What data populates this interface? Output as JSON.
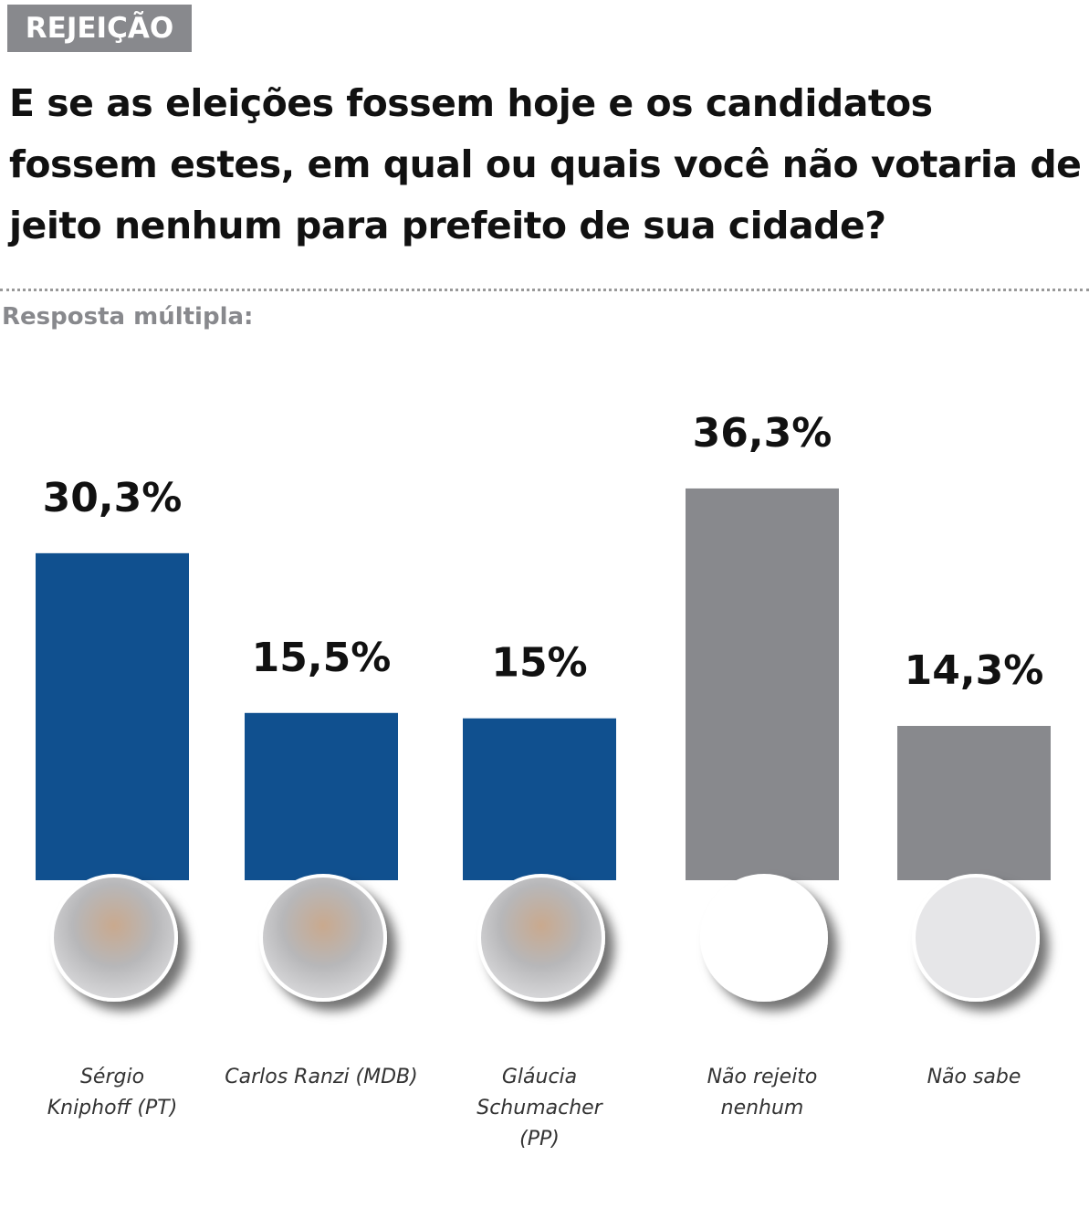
{
  "tag": "REJEIÇÃO",
  "chart_data": {
    "type": "bar",
    "title": "E se as eleições fossem hoje e os candidatos fossem estes, em qual ou quais você não votaria de jeito nenhum para prefeito de sua cidade?",
    "subtitle": "Resposta múltipla:",
    "categories": [
      "Sérgio Kniphoff (PT)",
      "Carlos Ranzi (MDB)",
      "Gláucia Schumacher (PP)",
      "Não rejeito nenhum",
      "Não sabe"
    ],
    "values": [
      30.3,
      15.5,
      15,
      36.3,
      14.3
    ],
    "value_labels": [
      "30,3%",
      "15,5%",
      "15%",
      "36,3%",
      "14,3%"
    ],
    "colors": [
      "#10508f",
      "#10508f",
      "#10508f",
      "#88898d",
      "#88898d"
    ]
  }
}
